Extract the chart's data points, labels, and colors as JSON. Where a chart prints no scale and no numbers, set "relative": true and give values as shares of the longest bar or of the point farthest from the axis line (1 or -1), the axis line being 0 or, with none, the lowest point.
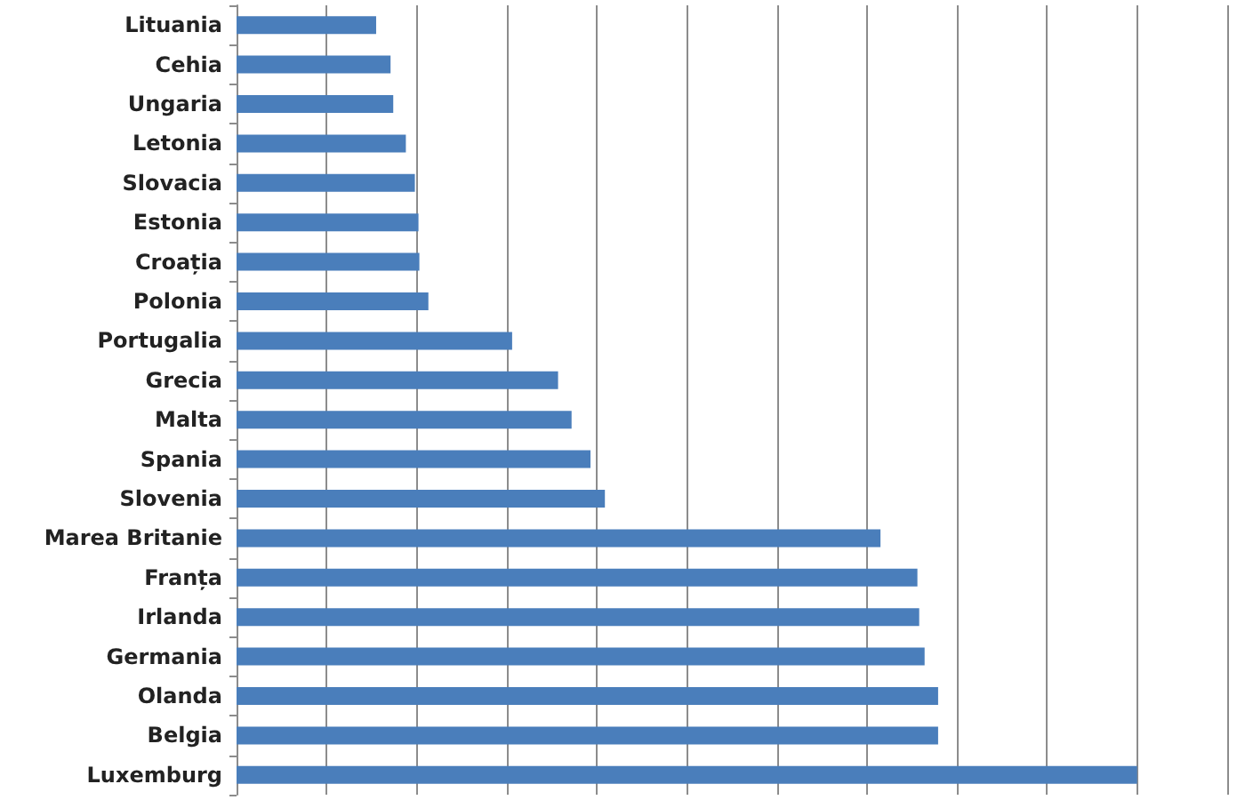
{
  "chart_data": {
    "type": "bar",
    "orientation": "horizontal",
    "relative": true,
    "grid": "x",
    "color": "#4a7ebb",
    "categories": [
      "Lituania",
      "Cehia",
      "Ungaria",
      "Letonia",
      "Slovacia",
      "Estonia",
      "Croația",
      "Polonia",
      "Portugalia",
      "Grecia",
      "Malta",
      "Spania",
      "Slovenia",
      "Marea Britanie",
      "Franța",
      "Irlanda",
      "Germania",
      "Olanda",
      "Belgia",
      "Luxemburg"
    ],
    "values": [
      0.155,
      0.171,
      0.174,
      0.188,
      0.198,
      0.202,
      0.203,
      0.213,
      0.306,
      0.357,
      0.372,
      0.393,
      0.409,
      0.715,
      0.756,
      0.758,
      0.764,
      0.779,
      0.779,
      1
    ]
  }
}
